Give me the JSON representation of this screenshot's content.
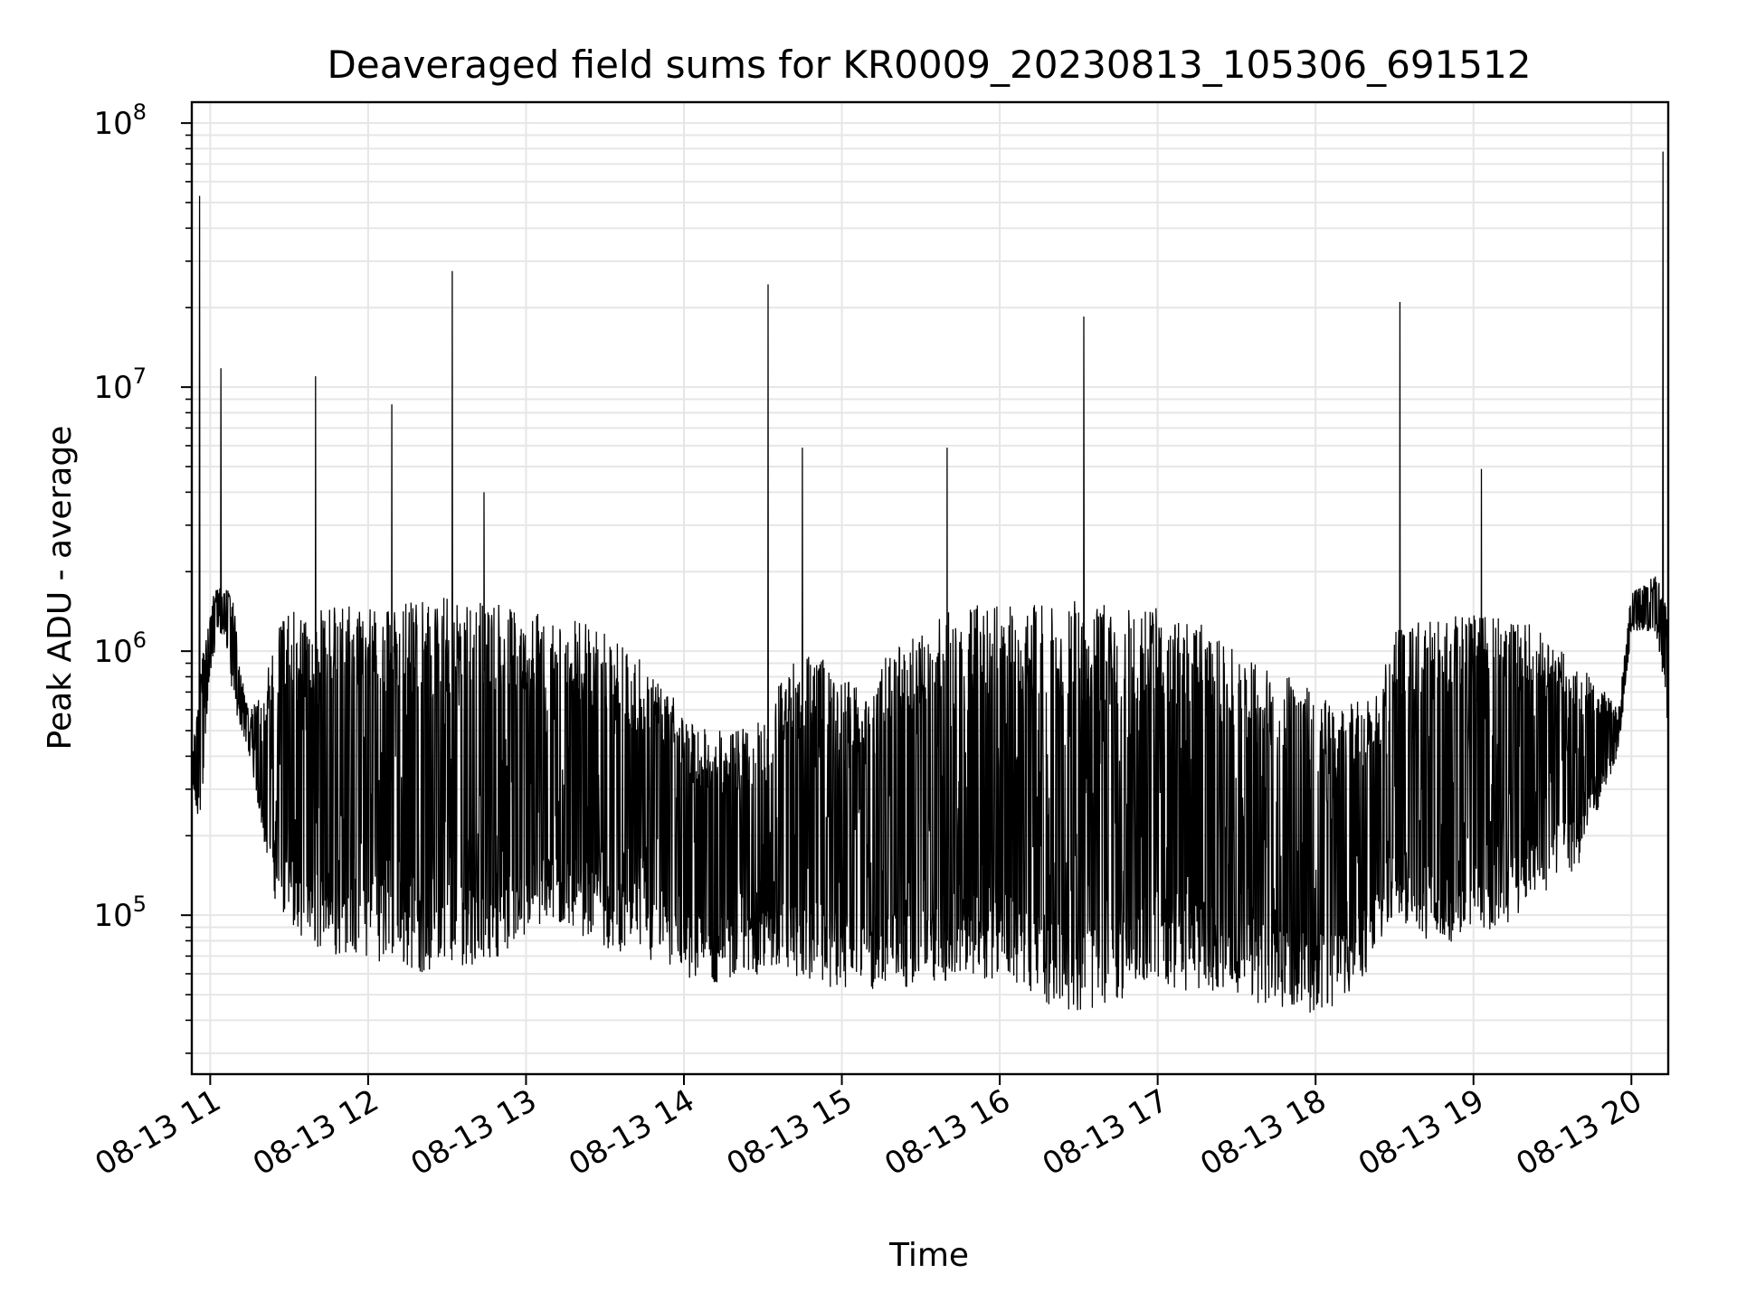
{
  "chart_data": {
    "type": "line",
    "title": "Deaveraged field sums for KR0009_20230813_105306_691512",
    "xlabel": "Time",
    "ylabel": "Peak ADU - average",
    "yscale": "log",
    "ylim": [
      25000,
      120000000
    ],
    "xlim": [
      "08-13 10:53",
      "08-13 20:14"
    ],
    "grid": true,
    "line_color": "#000000",
    "x_ticks": [
      "08-13 11",
      "08-13 12",
      "08-13 13",
      "08-13 14",
      "08-13 15",
      "08-13 16",
      "08-13 17",
      "08-13 18",
      "08-13 19",
      "08-13 20"
    ],
    "y_ticks": [
      {
        "base": "10",
        "exp": "5",
        "value": 100000
      },
      {
        "base": "10",
        "exp": "6",
        "value": 1000000
      },
      {
        "base": "10",
        "exp": "7",
        "value": 10000000
      },
      {
        "base": "10",
        "exp": "8",
        "value": 100000000
      }
    ],
    "series": [
      {
        "x": [
          "08-13 10:53",
          "08-13 10:56",
          "08-13 11:00",
          "08-13 11:03",
          "08-13 11:06",
          "08-13 11:09",
          "08-13 11:12",
          "08-13 11:15",
          "08-13 11:20",
          "08-13 11:25",
          "08-13 11:30",
          "08-13 11:35",
          "08-13 11:40",
          "08-13 11:45",
          "08-13 11:50",
          "08-13 11:55",
          "08-13 12:00",
          "08-13 12:10",
          "08-13 12:20",
          "08-13 12:30",
          "08-13 12:40",
          "08-13 12:50",
          "08-13 13:00",
          "08-13 13:10",
          "08-13 13:20",
          "08-13 13:30",
          "08-13 13:40",
          "08-13 13:50",
          "08-13 14:00",
          "08-13 14:10",
          "08-13 14:20",
          "08-13 14:30",
          "08-13 14:40",
          "08-13 14:50",
          "08-13 15:00",
          "08-13 15:10",
          "08-13 15:20",
          "08-13 15:30",
          "08-13 15:40",
          "08-13 15:50",
          "08-13 16:00",
          "08-13 16:10",
          "08-13 16:20",
          "08-13 16:30",
          "08-13 16:40",
          "08-13 16:50",
          "08-13 17:00",
          "08-13 17:10",
          "08-13 17:20",
          "08-13 17:30",
          "08-13 17:40",
          "08-13 17:50",
          "08-13 18:00",
          "08-13 18:10",
          "08-13 18:20",
          "08-13 18:30",
          "08-13 18:40",
          "08-13 18:50",
          "08-13 19:00",
          "08-13 19:10",
          "08-13 19:20",
          "08-13 19:30",
          "08-13 19:40",
          "08-13 19:50",
          "08-13 19:55",
          "08-13 20:00",
          "08-13 20:05",
          "08-13 20:10",
          "08-13 20:14"
        ],
        "low": [
          300000,
          200000,
          800000,
          1200000,
          1100000,
          600000,
          500000,
          400000,
          200000,
          110000,
          90000,
          80000,
          75000,
          72000,
          70000,
          70000,
          68000,
          65000,
          60000,
          62000,
          65000,
          70000,
          80000,
          90000,
          85000,
          75000,
          70000,
          62000,
          58000,
          55000,
          56000,
          60000,
          58000,
          55000,
          52000,
          50000,
          52000,
          55000,
          55000,
          56000,
          58000,
          52000,
          45000,
          42000,
          45000,
          50000,
          55000,
          52000,
          50000,
          48000,
          46000,
          44000,
          42000,
          45000,
          60000,
          100000,
          80000,
          75000,
          80000,
          90000,
          100000,
          130000,
          150000,
          300000,
          400000,
          1200000,
          1200000,
          1100000,
          500000
        ],
        "high": [
          400000,
          800000,
          1500000,
          1800000,
          1900000,
          1500000,
          800000,
          600000,
          700000,
          1200000,
          1400000,
          1450000,
          1450000,
          1500000,
          1500000,
          1500000,
          1500000,
          1500000,
          1550000,
          1600000,
          1550000,
          1500000,
          1400000,
          1400000,
          1300000,
          1200000,
          1000000,
          800000,
          600000,
          500000,
          500000,
          550000,
          900000,
          1000000,
          800000,
          700000,
          1100000,
          1200000,
          1400000,
          1500000,
          1500000,
          1550000,
          1550000,
          1550000,
          1500000,
          1500000,
          1500000,
          1400000,
          1200000,
          1000000,
          900000,
          800000,
          700000,
          600000,
          700000,
          1200000,
          1300000,
          1350000,
          1400000,
          1350000,
          1300000,
          1100000,
          900000,
          700000,
          600000,
          1700000,
          1800000,
          2000000,
          1400000
        ]
      }
    ],
    "spikes": [
      {
        "x": "08-13 10:56",
        "value": 53000000
      },
      {
        "x": "08-13 11:04",
        "value": 11800000
      },
      {
        "x": "08-13 11:40",
        "value": 11000000
      },
      {
        "x": "08-13 12:09",
        "value": 8600000
      },
      {
        "x": "08-13 12:32",
        "value": 27500000
      },
      {
        "x": "08-13 12:44",
        "value": 4000000
      },
      {
        "x": "08-13 14:32",
        "value": 24500000
      },
      {
        "x": "08-13 14:45",
        "value": 5900000
      },
      {
        "x": "08-13 15:40",
        "value": 5900000
      },
      {
        "x": "08-13 16:32",
        "value": 18500000
      },
      {
        "x": "08-13 18:32",
        "value": 21000000
      },
      {
        "x": "08-13 19:03",
        "value": 4900000
      },
      {
        "x": "08-13 20:12",
        "value": 78000000
      }
    ]
  }
}
